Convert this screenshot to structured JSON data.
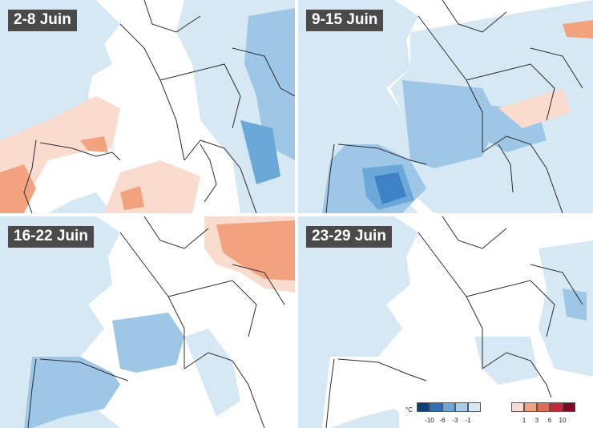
{
  "panels": [
    {
      "label": "2-8 Juin"
    },
    {
      "label": "9-15 Juin"
    },
    {
      "label": "16-22 Juin"
    },
    {
      "label": "23-29 Juin"
    }
  ],
  "legend": {
    "unit": "°C",
    "negative_ticks": [
      "-10",
      "-6",
      "-3",
      "-1"
    ],
    "positive_ticks": [
      "1",
      "3",
      "6",
      "10"
    ],
    "negative_colors": [
      "#0d3f7a",
      "#2e6fb5",
      "#6da6d6",
      "#a9cde9",
      "#d7e8f4"
    ],
    "positive_colors": [
      "#fadccf",
      "#f2a27f",
      "#e06a52",
      "#c4283a",
      "#7d0a22"
    ]
  },
  "colors": {
    "land": "#ffffff",
    "light_blue": "#d6e8f4",
    "mid_blue": "#9ec6e6",
    "blue": "#6aa8d8",
    "dark_blue": "#3d82c4",
    "light_orange": "#fadccf",
    "orange": "#f2a27f",
    "border": "#2b2b2b"
  }
}
